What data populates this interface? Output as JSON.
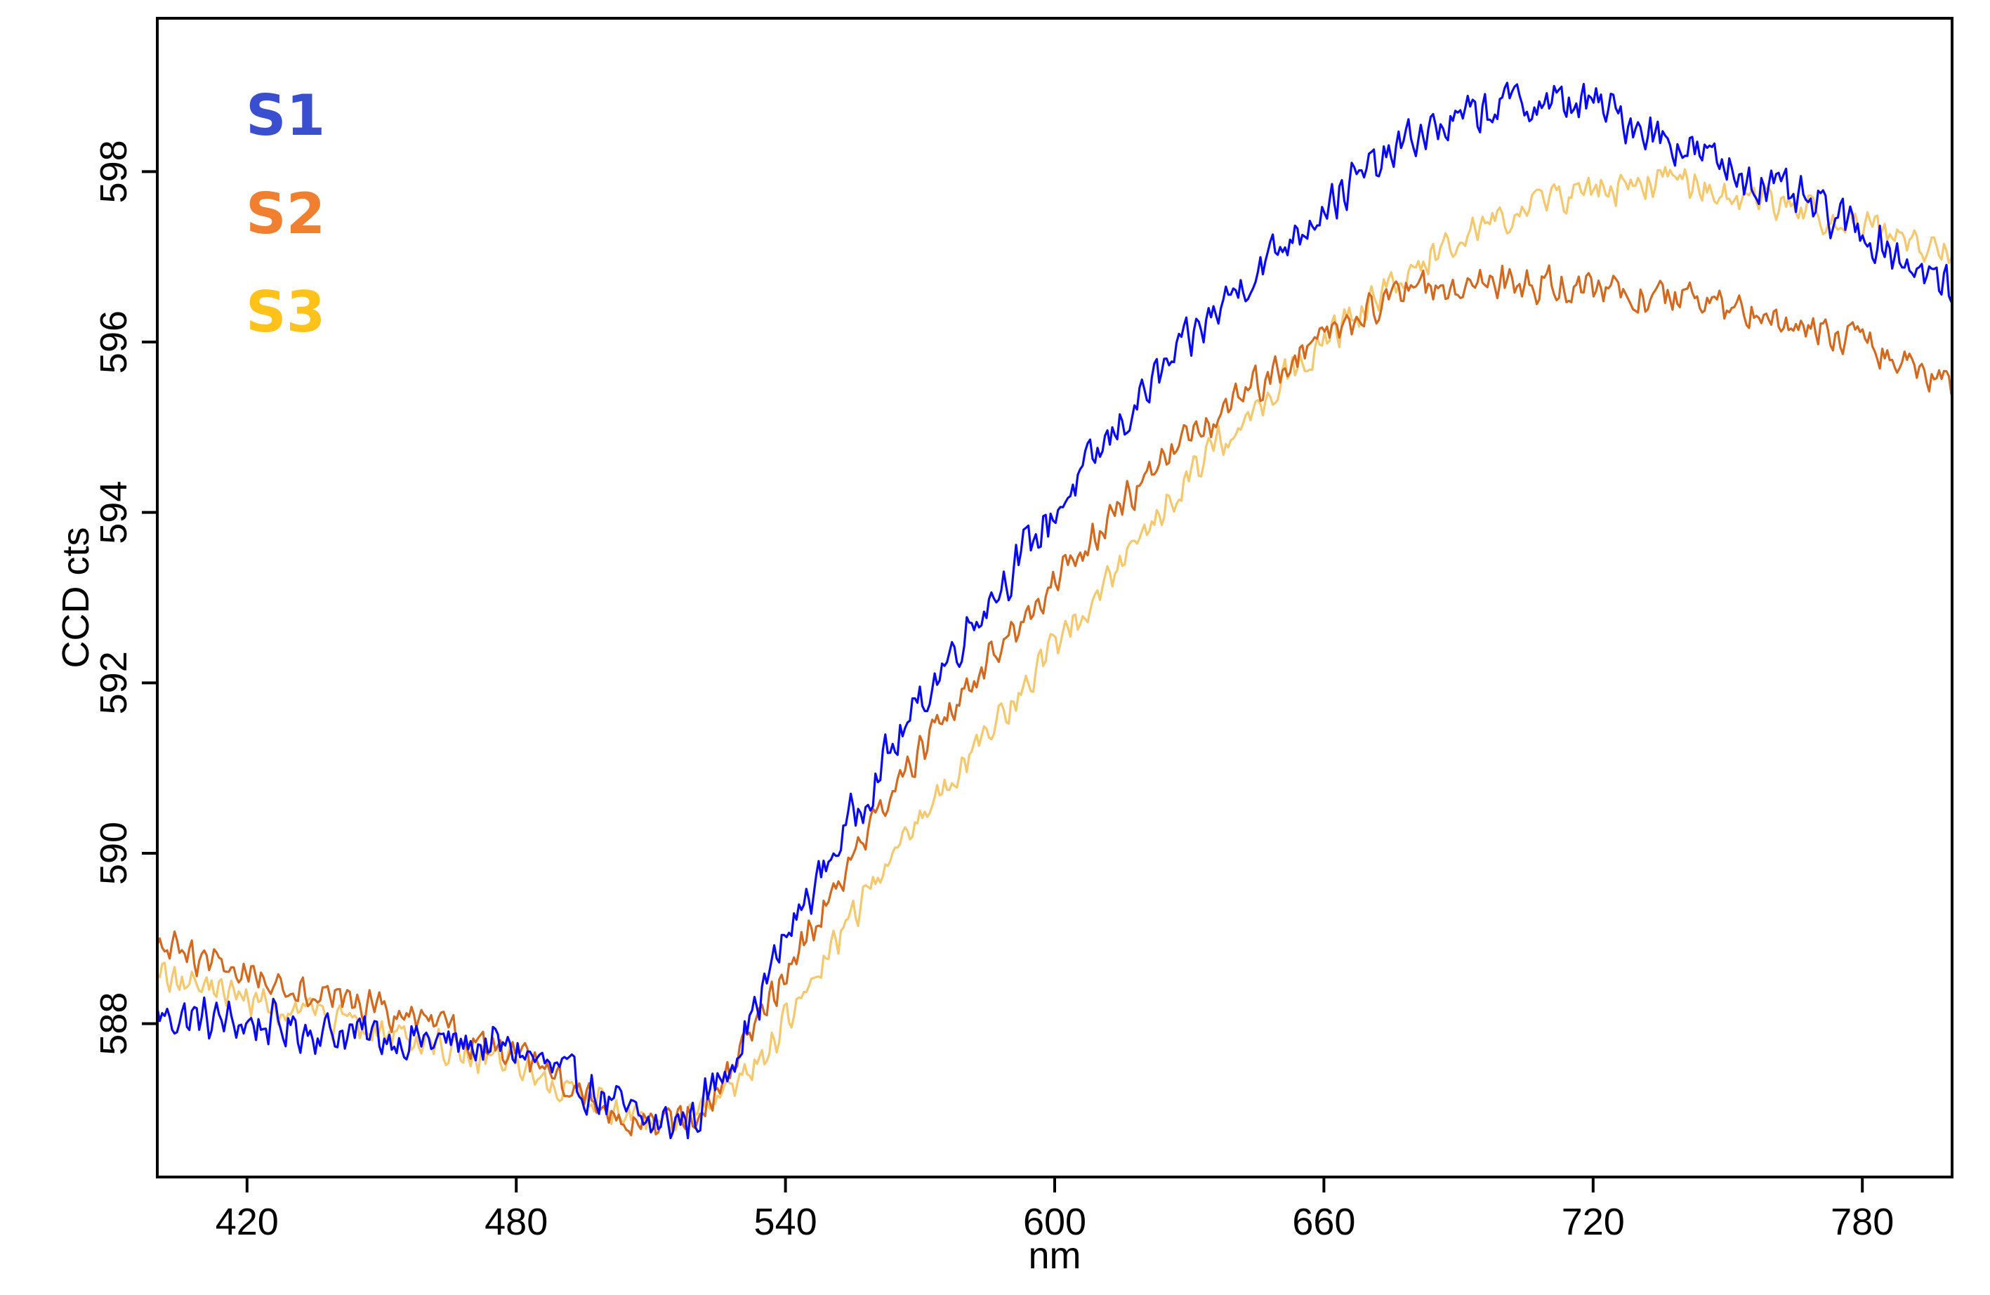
{
  "chart_data": {
    "type": "line",
    "xlabel": "nm",
    "ylabel": "CCD cts",
    "xlim": [
      400,
      800
    ],
    "ylim": [
      586.2,
      599.8
    ],
    "x_ticks": [
      420,
      480,
      540,
      600,
      660,
      720,
      780
    ],
    "y_ticks": [
      588,
      590,
      592,
      594,
      596,
      598
    ],
    "grid": false,
    "legend_position": "top-left",
    "series": [
      {
        "name": "S1",
        "color": "#0a0af0",
        "legend_color": "#3a4fd0",
        "noise": 0.45,
        "x": [
          400,
          420,
          440,
          460,
          480,
          500,
          510,
          520,
          530,
          540,
          560,
          580,
          600,
          620,
          640,
          660,
          680,
          700,
          720,
          740,
          760,
          780,
          800
        ],
        "y": [
          588.1,
          588.0,
          587.9,
          587.8,
          587.7,
          587.1,
          586.8,
          586.9,
          587.8,
          589.0,
          590.9,
          592.6,
          594.0,
          595.4,
          596.6,
          597.6,
          598.4,
          598.8,
          598.8,
          598.3,
          597.8,
          597.3,
          596.6
        ]
      },
      {
        "name": "S2",
        "color": "#d2691e",
        "legend_color": "#f08030",
        "noise": 0.35,
        "x": [
          400,
          420,
          440,
          460,
          480,
          500,
          510,
          520,
          530,
          540,
          560,
          580,
          600,
          620,
          640,
          660,
          680,
          700,
          720,
          740,
          760,
          780,
          800
        ],
        "y": [
          588.9,
          588.6,
          588.3,
          588.0,
          587.6,
          587.0,
          586.8,
          586.9,
          587.6,
          588.6,
          590.4,
          591.9,
          593.2,
          594.4,
          595.3,
          596.1,
          596.6,
          596.7,
          596.6,
          596.5,
          596.3,
          596.0,
          595.5
        ]
      },
      {
        "name": "S3",
        "color": "#f5c86e",
        "legend_color": "#ffc21a",
        "noise": 0.35,
        "x": [
          400,
          420,
          440,
          460,
          480,
          500,
          510,
          520,
          530,
          540,
          560,
          580,
          600,
          620,
          640,
          660,
          680,
          700,
          720,
          740,
          760,
          780,
          800
        ],
        "y": [
          588.6,
          588.3,
          588.0,
          587.8,
          587.5,
          587.0,
          586.8,
          586.9,
          587.3,
          588.0,
          589.7,
          591.1,
          592.4,
          593.8,
          595.0,
          596.0,
          596.9,
          597.5,
          597.8,
          597.9,
          597.6,
          597.4,
          597.0
        ]
      }
    ]
  }
}
